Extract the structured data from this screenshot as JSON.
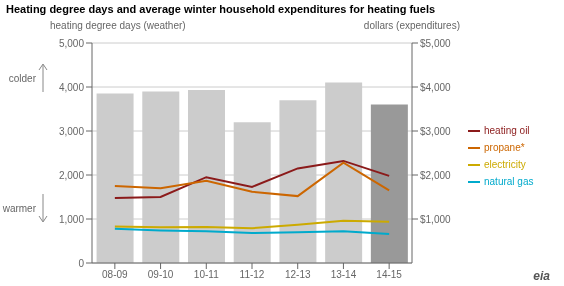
{
  "chart_data": {
    "type": "bar",
    "title": "Heating degree days and average winter household expenditures for heating fuels",
    "y_label": "heating degree days (weather)",
    "y2_label": "dollars (expenditures)",
    "annotations": [
      "colder",
      "warmer",
      "eia"
    ],
    "categories": [
      "08-09",
      "09-10",
      "10-11",
      "11-12",
      "12-13",
      "13-14",
      "14-15"
    ],
    "series": [
      {
        "type": "bar",
        "colors": [
          "#cccccc",
          "#cccccc",
          "#cccccc",
          "#cccccc",
          "#cccccc",
          "#cccccc",
          "#999999"
        ],
        "values": [
          3850,
          3900,
          3930,
          3200,
          3700,
          4100,
          3600
        ]
      },
      {
        "name": "heating oil",
        "type": "line",
        "axis": "y2",
        "color": "#8b1a1a",
        "values": [
          1480,
          1500,
          1950,
          1730,
          2150,
          2320,
          1980
        ]
      },
      {
        "name": "propane*",
        "type": "line",
        "axis": "y2",
        "color": "#cc6600",
        "values": [
          1750,
          1700,
          1870,
          1620,
          1520,
          2280,
          1650
        ]
      },
      {
        "name": "electricity",
        "type": "line",
        "axis": "y2",
        "color": "#ccaa00",
        "values": [
          830,
          810,
          820,
          790,
          870,
          960,
          940
        ]
      },
      {
        "name": "natural gas",
        "type": "line",
        "axis": "y2",
        "color": "#00aacc",
        "values": [
          780,
          740,
          720,
          680,
          700,
          720,
          660
        ]
      }
    ],
    "ylim": [
      0,
      5000
    ],
    "yticks": [
      0,
      {
        "value": 1000,
        "label": "1,000"
      },
      {
        "value": 2000,
        "label": "2,000"
      },
      {
        "value": 3000,
        "label": "3,000"
      },
      {
        "value": 4000,
        "label": "4,000"
      },
      {
        "value": 5000,
        "label": "5,000"
      }
    ],
    "y2lim": [
      0,
      5000
    ],
    "y2ticks": [
      {
        "value": 1000,
        "label": "$1,000"
      },
      {
        "value": 2000,
        "label": "$2,000"
      },
      {
        "value": 3000,
        "label": "$3,000"
      },
      {
        "value": 4000,
        "label": "$4,000"
      },
      {
        "value": 5000,
        "label": "$5,000"
      }
    ],
    "grid": true,
    "legend": "right"
  }
}
